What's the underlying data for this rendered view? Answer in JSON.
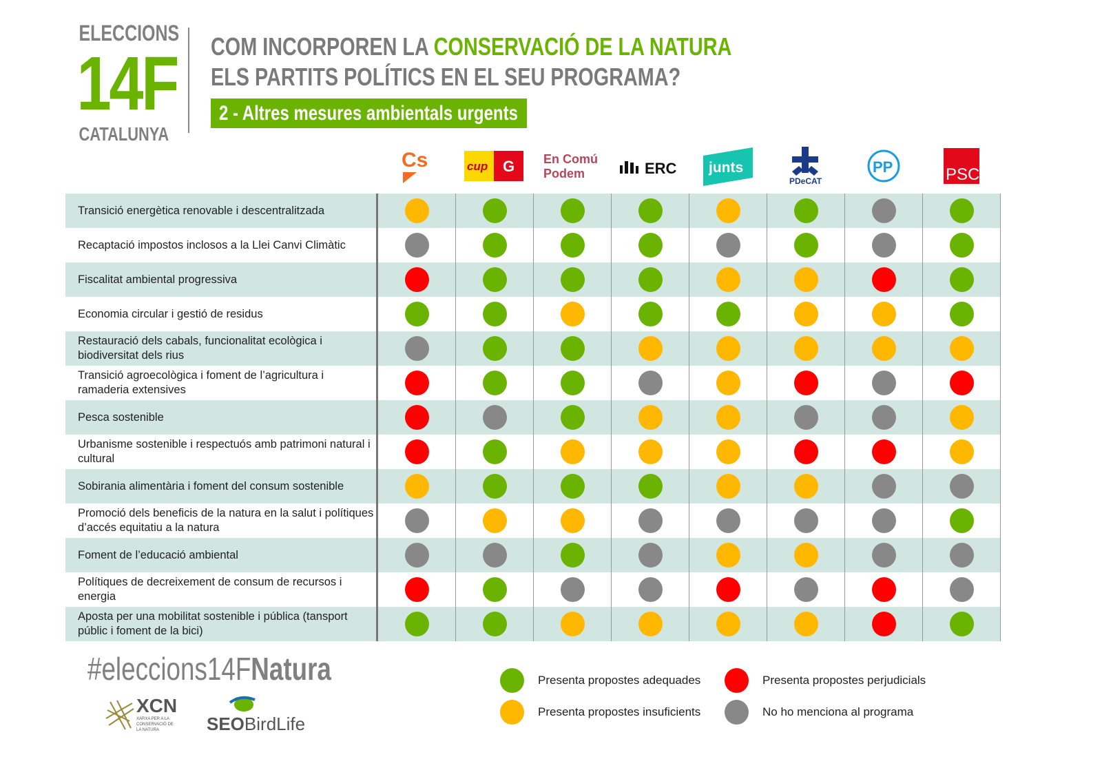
{
  "brand": {
    "top": "ELECCIONS",
    "big": "14F",
    "bottom": "CATALUNYA"
  },
  "title": {
    "line1_pre": "COM INCORPOREN LA ",
    "line1_hl": "CONSERVACIÓ DE LA NATURA",
    "line2": "ELS PARTITS POLÍTICS EN EL SEU PROGRAMA?"
  },
  "subtitle": "2 - Altres mesures ambientals urgents",
  "colors": {
    "adequate": "#6ab300",
    "insufficient": "#ffb700",
    "harmful": "#ff0000",
    "none": "#888888",
    "row_alt": "#d1e6e0",
    "brand_green": "#6ab300"
  },
  "parties": [
    {
      "name": "Cs",
      "color": "#f26c21"
    },
    {
      "name": "cup",
      "color": "#ffd700"
    },
    {
      "name": "En Comú Podem",
      "color": "#b4475d"
    },
    {
      "name": "ERC",
      "color": "#111111"
    },
    {
      "name": "junts",
      "color": "#17c4b0"
    },
    {
      "name": "PDeCAT",
      "color": "#1a3b8c"
    },
    {
      "name": "PP",
      "color": "#1a9ce0"
    },
    {
      "name": "PSC",
      "color": "#e3091b"
    }
  ],
  "rows": [
    {
      "label": "Transició energètica renovable i descentralitzada",
      "values": [
        "insufficient",
        "adequate",
        "adequate",
        "adequate",
        "insufficient",
        "adequate",
        "none",
        "adequate"
      ]
    },
    {
      "label": "Recaptació impostos inclosos a la Llei Canvi Climàtic",
      "values": [
        "none",
        "adequate",
        "adequate",
        "adequate",
        "none",
        "adequate",
        "none",
        "adequate"
      ]
    },
    {
      "label": "Fiscalitat ambiental progressiva",
      "values": [
        "harmful",
        "adequate",
        "adequate",
        "adequate",
        "insufficient",
        "insufficient",
        "harmful",
        "adequate"
      ]
    },
    {
      "label": "Economia circular i gestió de residus",
      "values": [
        "adequate",
        "adequate",
        "insufficient",
        "adequate",
        "adequate",
        "insufficient",
        "insufficient",
        "adequate"
      ]
    },
    {
      "label": "Restauració dels cabals, funcionalitat ecològica i biodiversitat dels rius",
      "values": [
        "none",
        "adequate",
        "adequate",
        "insufficient",
        "insufficient",
        "insufficient",
        "insufficient",
        "insufficient"
      ]
    },
    {
      "label": "Transició agroecològica i foment de l’agricultura i ramaderia extensives",
      "values": [
        "harmful",
        "adequate",
        "adequate",
        "none",
        "insufficient",
        "harmful",
        "none",
        "harmful"
      ]
    },
    {
      "label": "Pesca sostenible",
      "values": [
        "harmful",
        "none",
        "adequate",
        "insufficient",
        "insufficient",
        "none",
        "none",
        "insufficient"
      ]
    },
    {
      "label": "Urbanisme sostenible i respectuós amb patrimoni natural i cultural",
      "values": [
        "harmful",
        "adequate",
        "insufficient",
        "insufficient",
        "insufficient",
        "harmful",
        "harmful",
        "insufficient"
      ]
    },
    {
      "label": "Sobirania alimentària i foment del consum sostenible",
      "values": [
        "insufficient",
        "adequate",
        "adequate",
        "adequate",
        "insufficient",
        "insufficient",
        "none",
        "none"
      ]
    },
    {
      "label": "Promoció dels beneficis de la natura en la salut i polítiques d’accés equitatiu a la natura",
      "values": [
        "none",
        "insufficient",
        "insufficient",
        "none",
        "none",
        "none",
        "none",
        "adequate"
      ]
    },
    {
      "label": "Foment de l’educació ambiental",
      "values": [
        "none",
        "none",
        "adequate",
        "none",
        "insufficient",
        "insufficient",
        "none",
        "none"
      ]
    },
    {
      "label": "Polítiques de decreixement de consum de recursos i energia",
      "values": [
        "harmful",
        "adequate",
        "none",
        "none",
        "harmful",
        "none",
        "harmful",
        "none"
      ]
    },
    {
      "label": "Aposta per una mobilitat sostenible i pública (tansport públic i foment de la bici)",
      "values": [
        "adequate",
        "adequate",
        "insufficient",
        "insufficient",
        "insufficient",
        "insufficient",
        "harmful",
        "adequate"
      ]
    }
  ],
  "hashtag": {
    "pre": "#eleccions14F",
    "bold": "Natura"
  },
  "legend": [
    {
      "key": "adequate",
      "label": "Presenta propostes adequades"
    },
    {
      "key": "harmful",
      "label": "Presenta propostes perjudicials"
    },
    {
      "key": "insufficient",
      "label": "Presenta propostes insuficients"
    },
    {
      "key": "none",
      "label": "No ho menciona al programa"
    }
  ],
  "footer_logos": {
    "xcn": "XCN",
    "xcn_sub": "XARXA PER A LA CONSERVACIÓ DE LA NATURA",
    "seo": "SEO",
    "birdlife": "BirdLife"
  }
}
